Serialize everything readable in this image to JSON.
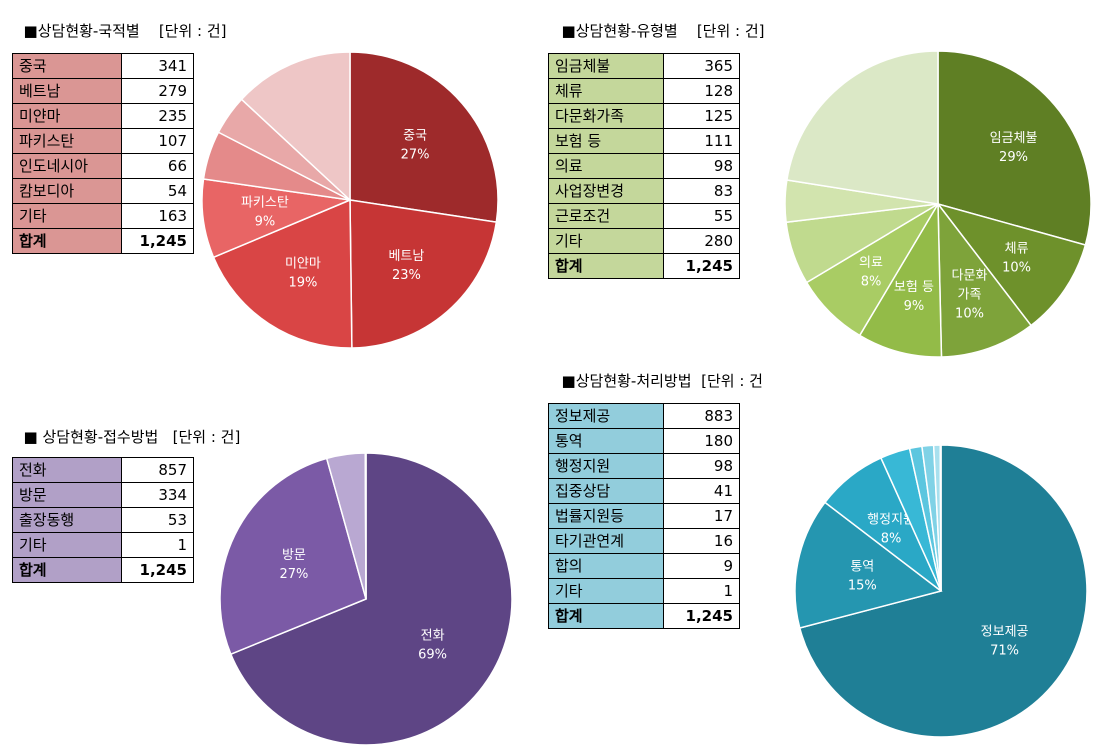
{
  "chart_data": [
    {
      "id": "nat",
      "type": "pie",
      "title": "■상담현황-국적별",
      "unit": "[단위 : 건]",
      "table": [
        {
          "label": "중국",
          "value": "341"
        },
        {
          "label": "베트남",
          "value": "279"
        },
        {
          "label": "미얀마",
          "value": "235"
        },
        {
          "label": "파키스탄",
          "value": "107"
        },
        {
          "label": "인도네시아",
          "value": "66"
        },
        {
          "label": "캄보디아",
          "value": "54"
        },
        {
          "label": "기타",
          "value": "163"
        }
      ],
      "total": {
        "label": "합계",
        "value": "1,245"
      },
      "slices": [
        {
          "value": 341,
          "color": "#9e2a2b",
          "label": "중국",
          "pct": "27%"
        },
        {
          "value": 279,
          "color": "#c63535",
          "label": "베트남",
          "pct": "23%"
        },
        {
          "value": 235,
          "color": "#d94545",
          "label": "미얀마",
          "pct": "19%"
        },
        {
          "value": 107,
          "color": "#e86565",
          "label": "파키스탄",
          "pct": "9%"
        },
        {
          "value": 66,
          "color": "#e48a8a",
          "label": "",
          "pct": ""
        },
        {
          "value": 54,
          "color": "#e8a8a8",
          "label": "",
          "pct": ""
        },
        {
          "value": 163,
          "color": "#eec6c6",
          "label": "",
          "pct": ""
        }
      ],
      "table_color": "#da9694"
    },
    {
      "id": "type",
      "type": "pie",
      "title": "■상담현황-유형별",
      "unit": "[단위 : 건]",
      "table": [
        {
          "label": "임금체불",
          "value": "365"
        },
        {
          "label": "체류",
          "value": "128"
        },
        {
          "label": "다문화가족",
          "value": "125"
        },
        {
          "label": "보험 등",
          "value": "111"
        },
        {
          "label": "의료",
          "value": "98"
        },
        {
          "label": "사업장변경",
          "value": "83"
        },
        {
          "label": "근로조건",
          "value": "55"
        },
        {
          "label": "기타",
          "value": "280"
        }
      ],
      "total": {
        "label": "합계",
        "value": "1,245"
      },
      "slices": [
        {
          "value": 365,
          "color": "#5f7f24",
          "label": "임금체불",
          "pct": "29%"
        },
        {
          "value": 128,
          "color": "#6e912b",
          "label": "체류",
          "pct": "10%"
        },
        {
          "value": 125,
          "color": "#7ea33a",
          "label": "다문화|가족",
          "pct": "10%"
        },
        {
          "value": 111,
          "color": "#93bb48",
          "label": "보험 등",
          "pct": "9%"
        },
        {
          "value": 98,
          "color": "#a9cc64",
          "label": "의료",
          "pct": "8%"
        },
        {
          "value": 83,
          "color": "#c0da8e",
          "label": "",
          "pct": ""
        },
        {
          "value": 55,
          "color": "#d2e4ae",
          "label": "",
          "pct": ""
        },
        {
          "value": 280,
          "color": "#dbe8c6",
          "label": "",
          "pct": ""
        }
      ],
      "table_color": "#c4d79b"
    },
    {
      "id": "recv",
      "type": "pie",
      "title": "■ 상담현황-접수방법",
      "unit": "[단위 : 건]",
      "table": [
        {
          "label": "전화",
          "value": "857"
        },
        {
          "label": "방문",
          "value": "334"
        },
        {
          "label": "출장동행",
          "value": "53"
        },
        {
          "label": "기타",
          "value": "1"
        }
      ],
      "total": {
        "label": "합계",
        "value": "1,245"
      },
      "slices": [
        {
          "value": 857,
          "color": "#5e4585",
          "label": "전화",
          "pct": "69%"
        },
        {
          "value": 334,
          "color": "#7b5aa6",
          "label": "방문",
          "pct": "27%"
        },
        {
          "value": 53,
          "color": "#b9a8d2",
          "label": "",
          "pct": ""
        },
        {
          "value": 1,
          "color": "#d9cfe8",
          "label": "",
          "pct": ""
        }
      ],
      "table_color": "#b1a0c7"
    },
    {
      "id": "proc",
      "type": "pie",
      "title": "■상담현황-처리방법",
      "unit": "[단위 : 건",
      "table": [
        {
          "label": "정보제공",
          "value": "883"
        },
        {
          "label": "통역",
          "value": "180"
        },
        {
          "label": "행정지원",
          "value": "98"
        },
        {
          "label": "집중상담",
          "value": "41"
        },
        {
          "label": "법률지원등",
          "value": "17"
        },
        {
          "label": "타기관연계",
          "value": "16"
        },
        {
          "label": "합의",
          "value": "9"
        },
        {
          "label": "기타",
          "value": "1"
        }
      ],
      "total": {
        "label": "합계",
        "value": "1,245"
      },
      "slices": [
        {
          "value": 883,
          "color": "#1f7f96",
          "label": "정보제공",
          "pct": "71%"
        },
        {
          "value": 180,
          "color": "#2596b0",
          "label": "통역",
          "pct": "15%"
        },
        {
          "value": 98,
          "color": "#2aa8c6",
          "label": "행정지원",
          "pct": "8%"
        },
        {
          "value": 41,
          "color": "#38b8d6",
          "label": "",
          "pct": ""
        },
        {
          "value": 17,
          "color": "#5cc6df",
          "label": "",
          "pct": ""
        },
        {
          "value": 16,
          "color": "#80d2e6",
          "label": "",
          "pct": ""
        },
        {
          "value": 9,
          "color": "#a8e0ee",
          "label": "",
          "pct": ""
        },
        {
          "value": 1,
          "color": "#c8ecf5",
          "label": "",
          "pct": ""
        }
      ],
      "table_color": "#92cddc"
    }
  ]
}
